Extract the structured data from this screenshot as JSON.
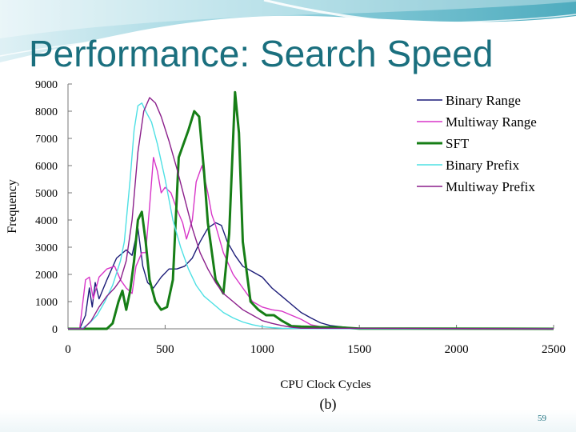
{
  "slide": {
    "title": "Performance: Search Speed",
    "page_number": "59",
    "theme_color": "#1a6f7e"
  },
  "chart_data": {
    "type": "line",
    "title": "",
    "caption": "(b)",
    "xlabel": "CPU Clock Cycles",
    "ylabel": "Frequency",
    "xlim": [
      0,
      2500
    ],
    "ylim": [
      0,
      9000
    ],
    "x_ticks": [
      0,
      500,
      1000,
      1500,
      2000,
      2500
    ],
    "y_ticks": [
      0,
      1000,
      2000,
      3000,
      4000,
      5000,
      6000,
      7000,
      8000,
      9000
    ],
    "grid": false,
    "legend_position": "top-right",
    "series": [
      {
        "name": "Binary Range",
        "color": "#1c1c78",
        "width": 1.4,
        "points": [
          [
            0,
            0
          ],
          [
            60,
            0
          ],
          [
            90,
            500
          ],
          [
            110,
            1500
          ],
          [
            125,
            800
          ],
          [
            140,
            1700
          ],
          [
            160,
            1100
          ],
          [
            200,
            1800
          ],
          [
            250,
            2600
          ],
          [
            300,
            2900
          ],
          [
            330,
            2700
          ],
          [
            360,
            3700
          ],
          [
            385,
            2300
          ],
          [
            410,
            1700
          ],
          [
            440,
            1500
          ],
          [
            480,
            1900
          ],
          [
            520,
            2200
          ],
          [
            560,
            2200
          ],
          [
            600,
            2300
          ],
          [
            640,
            2600
          ],
          [
            680,
            3200
          ],
          [
            720,
            3700
          ],
          [
            760,
            3900
          ],
          [
            790,
            3800
          ],
          [
            820,
            3200
          ],
          [
            860,
            2700
          ],
          [
            900,
            2300
          ],
          [
            950,
            2100
          ],
          [
            1000,
            1900
          ],
          [
            1050,
            1500
          ],
          [
            1100,
            1200
          ],
          [
            1150,
            900
          ],
          [
            1200,
            600
          ],
          [
            1250,
            400
          ],
          [
            1300,
            220
          ],
          [
            1350,
            120
          ],
          [
            1400,
            80
          ],
          [
            1450,
            40
          ],
          [
            1500,
            15
          ],
          [
            1600,
            5
          ],
          [
            2500,
            0
          ]
        ]
      },
      {
        "name": "Multiway Range",
        "color": "#d835c8",
        "width": 1.4,
        "points": [
          [
            0,
            0
          ],
          [
            60,
            0
          ],
          [
            90,
            1800
          ],
          [
            110,
            1900
          ],
          [
            130,
            1100
          ],
          [
            160,
            1900
          ],
          [
            200,
            2200
          ],
          [
            240,
            2300
          ],
          [
            270,
            1800
          ],
          [
            300,
            1500
          ],
          [
            330,
            1300
          ],
          [
            350,
            2300
          ],
          [
            380,
            2800
          ],
          [
            400,
            2800
          ],
          [
            420,
            4500
          ],
          [
            440,
            6300
          ],
          [
            460,
            5800
          ],
          [
            480,
            5000
          ],
          [
            500,
            5200
          ],
          [
            530,
            5000
          ],
          [
            560,
            4400
          ],
          [
            590,
            3900
          ],
          [
            610,
            3300
          ],
          [
            640,
            4000
          ],
          [
            660,
            5400
          ],
          [
            690,
            6000
          ],
          [
            720,
            5000
          ],
          [
            740,
            4200
          ],
          [
            760,
            3800
          ],
          [
            800,
            2800
          ],
          [
            850,
            2000
          ],
          [
            900,
            1500
          ],
          [
            950,
            1000
          ],
          [
            1000,
            800
          ],
          [
            1050,
            700
          ],
          [
            1100,
            650
          ],
          [
            1150,
            500
          ],
          [
            1200,
            350
          ],
          [
            1250,
            150
          ],
          [
            1300,
            80
          ],
          [
            1400,
            40
          ],
          [
            1500,
            10
          ],
          [
            2500,
            0
          ]
        ]
      },
      {
        "name": "SFT",
        "color": "#167e16",
        "width": 3,
        "points": [
          [
            0,
            0
          ],
          [
            200,
            0
          ],
          [
            230,
            200
          ],
          [
            260,
            1000
          ],
          [
            280,
            1400
          ],
          [
            300,
            700
          ],
          [
            320,
            1400
          ],
          [
            340,
            2500
          ],
          [
            360,
            4000
          ],
          [
            380,
            4300
          ],
          [
            400,
            3200
          ],
          [
            420,
            1800
          ],
          [
            450,
            1000
          ],
          [
            480,
            700
          ],
          [
            510,
            800
          ],
          [
            540,
            1800
          ],
          [
            570,
            6300
          ],
          [
            620,
            7300
          ],
          [
            650,
            8000
          ],
          [
            675,
            7800
          ],
          [
            700,
            5800
          ],
          [
            720,
            3900
          ],
          [
            760,
            1800
          ],
          [
            800,
            1300
          ],
          [
            830,
            3500
          ],
          [
            860,
            8700
          ],
          [
            880,
            7200
          ],
          [
            900,
            3200
          ],
          [
            940,
            1000
          ],
          [
            980,
            700
          ],
          [
            1020,
            500
          ],
          [
            1060,
            500
          ],
          [
            1100,
            300
          ],
          [
            1150,
            100
          ],
          [
            1200,
            80
          ],
          [
            1300,
            60
          ],
          [
            1400,
            50
          ],
          [
            1500,
            10
          ],
          [
            2500,
            0
          ]
        ]
      },
      {
        "name": "Binary Prefix",
        "color": "#4ee0e4",
        "width": 1.4,
        "points": [
          [
            0,
            0
          ],
          [
            70,
            0
          ],
          [
            110,
            200
          ],
          [
            150,
            500
          ],
          [
            190,
            1000
          ],
          [
            230,
            1600
          ],
          [
            270,
            2500
          ],
          [
            290,
            3200
          ],
          [
            320,
            5500
          ],
          [
            340,
            7300
          ],
          [
            360,
            8200
          ],
          [
            380,
            8300
          ],
          [
            400,
            8000
          ],
          [
            430,
            7600
          ],
          [
            460,
            6800
          ],
          [
            500,
            5500
          ],
          [
            540,
            4000
          ],
          [
            580,
            3000
          ],
          [
            620,
            2200
          ],
          [
            660,
            1600
          ],
          [
            700,
            1200
          ],
          [
            750,
            900
          ],
          [
            800,
            600
          ],
          [
            850,
            400
          ],
          [
            900,
            250
          ],
          [
            950,
            150
          ],
          [
            1000,
            80
          ],
          [
            1050,
            40
          ],
          [
            1100,
            20
          ],
          [
            1200,
            5
          ],
          [
            2500,
            0
          ]
        ]
      },
      {
        "name": "Multiway Prefix",
        "color": "#8b1f8b",
        "width": 1.4,
        "points": [
          [
            0,
            0
          ],
          [
            80,
            0
          ],
          [
            120,
            300
          ],
          [
            160,
            800
          ],
          [
            200,
            1200
          ],
          [
            240,
            1500
          ],
          [
            270,
            1800
          ],
          [
            300,
            2500
          ],
          [
            330,
            4000
          ],
          [
            360,
            6500
          ],
          [
            390,
            8000
          ],
          [
            420,
            8500
          ],
          [
            450,
            8300
          ],
          [
            480,
            7800
          ],
          [
            520,
            6900
          ],
          [
            560,
            5900
          ],
          [
            600,
            4800
          ],
          [
            640,
            3700
          ],
          [
            680,
            2800
          ],
          [
            720,
            2200
          ],
          [
            760,
            1700
          ],
          [
            800,
            1300
          ],
          [
            850,
            1000
          ],
          [
            900,
            700
          ],
          [
            950,
            500
          ],
          [
            1000,
            300
          ],
          [
            1050,
            200
          ],
          [
            1100,
            120
          ],
          [
            1150,
            60
          ],
          [
            1200,
            20
          ],
          [
            2500,
            0
          ]
        ]
      }
    ]
  }
}
